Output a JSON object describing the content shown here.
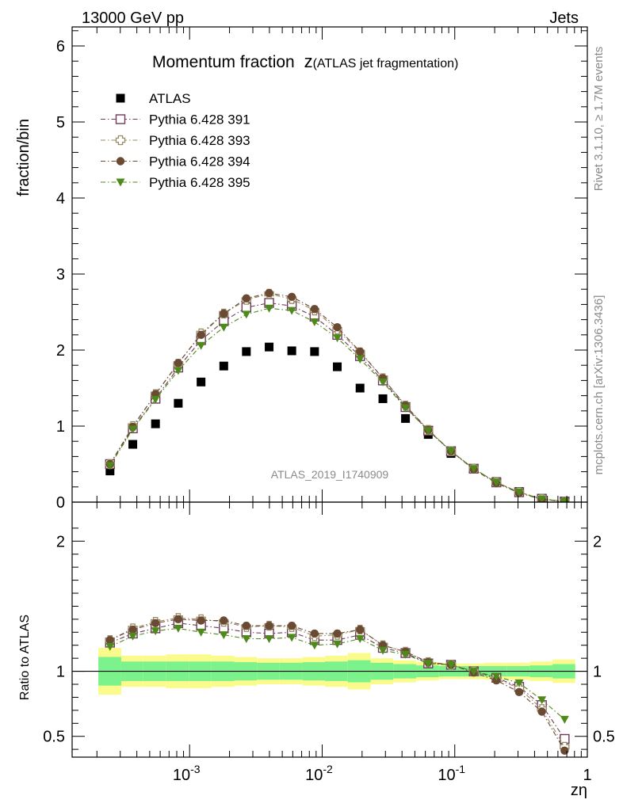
{
  "header": {
    "beam": "13000 GeV pp",
    "process": "Jets",
    "rivet": "Rivet 3.1.10, ≥ 1.7M events",
    "site": "mcplots.cern.ch [arXiv:1306.3436]",
    "analysis": "ATLAS_2019_I1740909"
  },
  "colors": {
    "data": "#000000",
    "p391": "#6e3a5a",
    "p393": "#9a8a64",
    "p394": "#6b4a34",
    "p395": "#4d8a1a",
    "band_inner": "#7cf28c",
    "band_outer": "#fbfb8c"
  },
  "chart_data": [
    {
      "type": "scatter",
      "title": "Momentum fraction",
      "title_symbol": "z",
      "title_sub": "(ATLAS jet fragmentation)",
      "ylabel": "fraction/bin",
      "xscale": "log",
      "xlim": [
        0.00013,
        1.0
      ],
      "ylim": [
        0,
        6.25
      ],
      "yticks": [
        0,
        1,
        2,
        3,
        4,
        5,
        6
      ],
      "xticks": [
        0.001,
        0.01,
        0.1,
        1
      ],
      "xtick_labels": [
        "10^-3",
        "10^-2",
        "10^-1",
        "1"
      ],
      "legend_position": "top-left",
      "x": [
        0.000251,
        0.000373,
        0.000553,
        0.000821,
        0.00122,
        0.00181,
        0.00268,
        0.00398,
        0.0059,
        0.00876,
        0.013,
        0.0193,
        0.0287,
        0.0425,
        0.0631,
        0.0937,
        0.139,
        0.206,
        0.306,
        0.454,
        0.674
      ],
      "series": [
        {
          "name": "ATLAS",
          "marker": "filled-square",
          "color_key": "data",
          "values": [
            0.41,
            0.76,
            1.03,
            1.3,
            1.58,
            1.79,
            1.98,
            2.04,
            1.99,
            1.98,
            1.78,
            1.5,
            1.36,
            1.1,
            0.89,
            0.64,
            0.44,
            0.27,
            0.14,
            0.052,
            0.015
          ]
        },
        {
          "name": "Pythia 6.428 391",
          "marker": "open-square",
          "color_key": "p391",
          "values": [
            0.5,
            0.97,
            1.36,
            1.77,
            2.13,
            2.38,
            2.56,
            2.62,
            2.58,
            2.44,
            2.2,
            1.92,
            1.6,
            1.25,
            0.94,
            0.67,
            0.44,
            0.26,
            0.13,
            0.044,
            0.0077
          ]
        },
        {
          "name": "Pythia 6.428 393",
          "marker": "open-cross",
          "color_key": "p393",
          "values": [
            0.5,
            1.0,
            1.42,
            1.82,
            2.22,
            2.48,
            2.66,
            2.74,
            2.67,
            2.52,
            2.27,
            1.97,
            1.63,
            1.27,
            0.95,
            0.67,
            0.44,
            0.26,
            0.13,
            0.043,
            0.0067
          ]
        },
        {
          "name": "Pythia 6.428 394",
          "marker": "filled-circle",
          "color_key": "p394",
          "values": [
            0.5,
            0.99,
            1.42,
            1.83,
            2.2,
            2.48,
            2.68,
            2.75,
            2.7,
            2.54,
            2.3,
            1.98,
            1.63,
            1.27,
            0.95,
            0.67,
            0.43,
            0.25,
            0.12,
            0.036,
            0.006
          ]
        },
        {
          "name": "Pythia 6.428 395",
          "marker": "filled-triangle-down",
          "color_key": "p395",
          "values": [
            0.48,
            0.96,
            1.35,
            1.73,
            2.06,
            2.3,
            2.47,
            2.55,
            2.52,
            2.37,
            2.16,
            1.88,
            1.58,
            1.24,
            0.94,
            0.67,
            0.44,
            0.26,
            0.13,
            0.041,
            0.0095
          ]
        }
      ]
    },
    {
      "type": "scatter",
      "ylabel": "Ratio to ATLAS",
      "xlabel": "zη",
      "xscale": "log",
      "xlim": [
        0.00013,
        1.0
      ],
      "ylim": [
        0.34,
        2.3
      ],
      "yticks": [
        0.5,
        1,
        2
      ],
      "ytick_labels": [
        "0.5",
        "1",
        "2"
      ],
      "reference_line": 1,
      "band_edges": [
        0.000205,
        0.000305,
        0.000447,
        0.000663,
        0.000986,
        0.00146,
        0.00217,
        0.00322,
        0.00478,
        0.0071,
        0.0105,
        0.0156,
        0.0232,
        0.0344,
        0.0511,
        0.0759,
        0.113,
        0.167,
        0.248,
        0.369,
        0.546,
        0.81
      ],
      "band_inner": [
        0.11,
        0.075,
        0.075,
        0.075,
        0.075,
        0.075,
        0.07,
        0.065,
        0.065,
        0.07,
        0.075,
        0.085,
        0.065,
        0.055,
        0.045,
        0.04,
        0.04,
        0.04,
        0.04,
        0.045,
        0.055
      ],
      "band_outer": [
        0.18,
        0.12,
        0.12,
        0.13,
        0.13,
        0.12,
        0.11,
        0.1,
        0.1,
        0.11,
        0.12,
        0.14,
        0.1,
        0.085,
        0.07,
        0.06,
        0.06,
        0.065,
        0.065,
        0.075,
        0.09
      ],
      "series": [
        {
          "name": "Pythia 6.428 391",
          "color_key": "p391",
          "values": [
            1.22,
            1.29,
            1.33,
            1.37,
            1.35,
            1.33,
            1.3,
            1.29,
            1.3,
            1.24,
            1.24,
            1.28,
            1.18,
            1.14,
            1.06,
            1.05,
            1.0,
            0.95,
            0.88,
            0.74,
            0.48
          ]
        },
        {
          "name": "Pythia 6.428 393",
          "color_key": "p393",
          "values": [
            1.24,
            1.33,
            1.38,
            1.41,
            1.4,
            1.38,
            1.34,
            1.35,
            1.34,
            1.27,
            1.28,
            1.32,
            1.2,
            1.15,
            1.07,
            1.05,
            1.0,
            0.94,
            0.87,
            0.71,
            0.42
          ]
        },
        {
          "name": "Pythia 6.428 394",
          "color_key": "p394",
          "values": [
            1.24,
            1.32,
            1.37,
            1.4,
            1.39,
            1.39,
            1.35,
            1.35,
            1.35,
            1.29,
            1.29,
            1.32,
            1.2,
            1.15,
            1.07,
            1.05,
            0.99,
            0.93,
            0.84,
            0.69,
            0.39
          ]
        },
        {
          "name": "Pythia 6.428 395",
          "color_key": "p395",
          "values": [
            1.19,
            1.27,
            1.31,
            1.33,
            1.3,
            1.28,
            1.25,
            1.25,
            1.26,
            1.2,
            1.21,
            1.25,
            1.16,
            1.13,
            1.06,
            1.05,
            1.0,
            0.96,
            0.91,
            0.78,
            0.63
          ]
        }
      ]
    }
  ]
}
